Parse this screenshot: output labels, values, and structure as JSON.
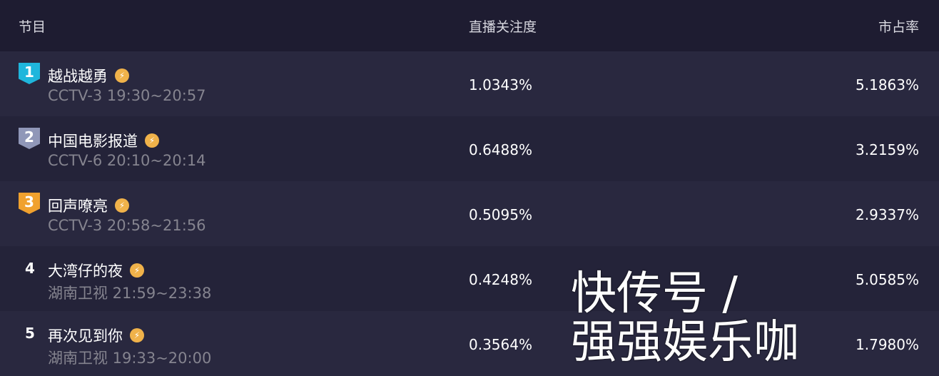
{
  "header": {
    "program": "节目",
    "attention": "直播关注度",
    "share": "市占率"
  },
  "rows": [
    {
      "rank": "1",
      "title": "越战越勇",
      "channel_time": "CCTV-3 19:30~20:57",
      "attention": "1.0343%",
      "share": "5.1863%",
      "badge_color": "#1fb6dc"
    },
    {
      "rank": "2",
      "title": "中国电影报道",
      "channel_time": "CCTV-6 20:10~20:14",
      "attention": "0.6488%",
      "share": "3.2159%",
      "badge_color": "#9097b8"
    },
    {
      "rank": "3",
      "title": "回声嘹亮",
      "channel_time": "CCTV-3 20:58~21:56",
      "attention": "0.5095%",
      "share": "2.9337%",
      "badge_color": "#f0a12e"
    },
    {
      "rank": "4",
      "title": "大湾仔的夜",
      "channel_time": "湖南卫视 21:59~23:38",
      "attention": "0.4248%",
      "share": "5.0585%"
    },
    {
      "rank": "5",
      "title": "再次见到你",
      "channel_time": "湖南卫视 19:33~20:00",
      "attention": "0.3564%",
      "share": "1.7980%"
    }
  ],
  "watermark": "快传号 / 强强娱乐咖"
}
